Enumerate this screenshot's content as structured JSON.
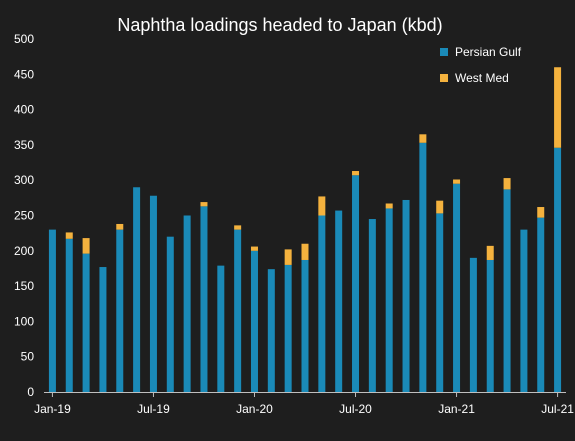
{
  "chart_data": {
    "type": "bar",
    "stacked": true,
    "title": "Naphtha loadings headed to Japan (kbd)",
    "xlabel": "",
    "ylabel": "",
    "ylim": [
      0,
      500
    ],
    "yticks": [
      0,
      50,
      100,
      150,
      200,
      250,
      300,
      350,
      400,
      450,
      500
    ],
    "grid": false,
    "legend_position": "top-right",
    "categories": [
      "Jan-19",
      "Feb-19",
      "Mar-19",
      "Apr-19",
      "May-19",
      "Jun-19",
      "Jul-19",
      "Aug-19",
      "Sep-19",
      "Oct-19",
      "Nov-19",
      "Dec-19",
      "Jan-20",
      "Feb-20",
      "Mar-20",
      "Apr-20",
      "May-20",
      "Jun-20",
      "Jul-20",
      "Aug-20",
      "Sep-20",
      "Oct-20",
      "Nov-20",
      "Dec-20",
      "Jan-21",
      "Feb-21",
      "Mar-21",
      "Apr-21",
      "May-21",
      "Jun-21",
      "Jul-21"
    ],
    "xtick_labels": [
      {
        "index": 0,
        "label": "Jan-19"
      },
      {
        "index": 6,
        "label": "Jul-19"
      },
      {
        "index": 12,
        "label": "Jan-20"
      },
      {
        "index": 18,
        "label": "Jul-20"
      },
      {
        "index": 24,
        "label": "Jan-21"
      },
      {
        "index": 30,
        "label": "Jul-21"
      }
    ],
    "series": [
      {
        "name": "Persian Gulf",
        "color": "#1a8ab8",
        "values": [
          230,
          217,
          196,
          177,
          230,
          290,
          278,
          220,
          250,
          263,
          179,
          230,
          200,
          174,
          180,
          187,
          250,
          257,
          307,
          245,
          260,
          272,
          353,
          253,
          295,
          190,
          187,
          287,
          230,
          247,
          346
        ]
      },
      {
        "name": "West Med",
        "color": "#f4b23e",
        "values": [
          0,
          9,
          22,
          0,
          8,
          0,
          0,
          0,
          0,
          6,
          0,
          6,
          6,
          0,
          22,
          23,
          27,
          0,
          6,
          0,
          7,
          0,
          12,
          18,
          6,
          0,
          20,
          16,
          0,
          15,
          114
        ]
      }
    ]
  }
}
